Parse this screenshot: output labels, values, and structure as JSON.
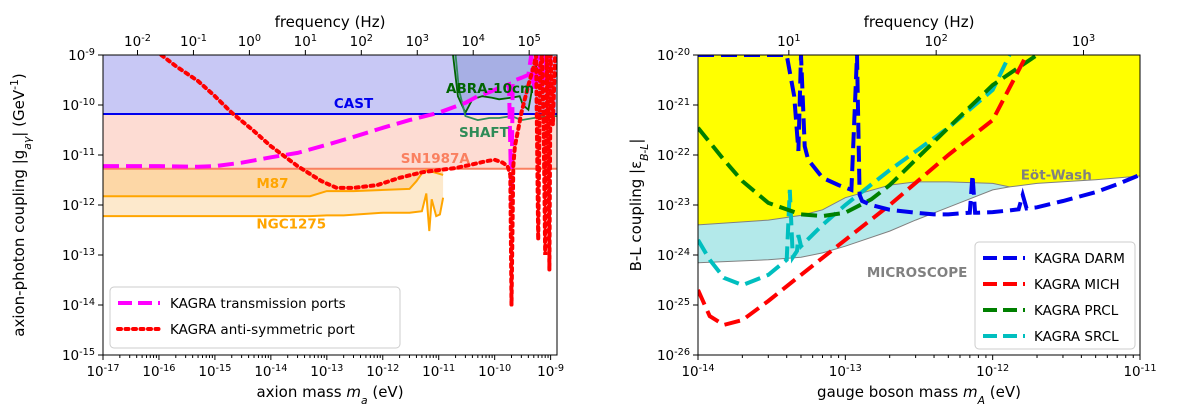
{
  "chart_data": [
    {
      "type": "line",
      "xlabel": "axion mass $m_a$ (eV)",
      "ylabel": "axion-photon coupling $|g_{a\\gamma}|$ (GeV$^{-1}$)",
      "top_xlabel": "frequency (Hz)",
      "xscale": "log",
      "yscale": "log",
      "xlim": [
        1e-17,
        1.3e-09
      ],
      "ylim": [
        1e-15,
        1e-09
      ],
      "x_ticks": [
        "10$^{-17}$",
        "10$^{-16}$",
        "10$^{-15}$",
        "10$^{-14}$",
        "10$^{-13}$",
        "10$^{-12}$",
        "10$^{-11}$",
        "10$^{-10}$",
        "10$^{-9}$"
      ],
      "y_ticks": [
        "10$^{-15}$",
        "10$^{-14}$",
        "10$^{-13}$",
        "10$^{-12}$",
        "10$^{-11}$",
        "10$^{-10}$",
        "10$^{-9}$"
      ],
      "top_x_ticks": [
        "10$^{-2}$",
        "10$^{-1}$",
        "10$^{0}$",
        "10$^{1}$",
        "10$^{2}$",
        "10$^{3}$",
        "10$^{4}$",
        "10$^{5}$"
      ],
      "legend": {
        "placement": "lower-left",
        "entries": [
          {
            "label": "KAGRA transmission ports",
            "color": "#ff00ff",
            "style": "dashed"
          },
          {
            "label": "KAGRA anti-symmetric port",
            "color": "#ff0000",
            "style": "dotted"
          }
        ]
      },
      "annotations": [
        {
          "text": "CAST",
          "color": "#0000ee"
        },
        {
          "text": "ABRA-10cm",
          "color": "#006400"
        },
        {
          "text": "SHAFT",
          "color": "#2e8b57"
        },
        {
          "text": "SN1987A",
          "color": "#fa8060"
        },
        {
          "text": "M87",
          "color": "#ffa500"
        },
        {
          "text": "NGC1275",
          "color": "#ffa500"
        }
      ],
      "constraints": [
        {
          "name": "CAST",
          "color": "#0000ee",
          "fill": "#c8c8f5",
          "y": 6.6e-11
        },
        {
          "name": "SN1987A",
          "color": "#fa8060",
          "fill": "#fddcd3",
          "y": 5.3e-12
        },
        {
          "name": "M87",
          "color": "#ffa500",
          "fill": "#fdd7a6",
          "x": [
            1e-17,
            5e-14,
            1e-13,
            3e-13,
            3e-12,
            4e-12,
            5e-12,
            6e-12,
            1.2e-11
          ],
          "y": [
            1.5e-12,
            1.5e-12,
            1.9e-12,
            1.9e-12,
            2.1e-12,
            3e-12,
            4.3e-12,
            5e-12,
            4e-12
          ]
        },
        {
          "name": "NGC1275",
          "color": "#ffa500",
          "fill": "#fde9cc",
          "x": [
            1e-17,
            5e-14,
            1e-13,
            2e-13,
            1e-12,
            3e-12,
            5e-12,
            6e-12,
            6.8e-12,
            7.5e-12,
            9e-12,
            1.05e-11,
            1.2e-11
          ],
          "y": [
            6e-13,
            6e-13,
            6.2e-13,
            6.2e-13,
            7e-13,
            7e-13,
            7.5e-13,
            1.7e-12,
            3e-13,
            1.3e-12,
            6e-13,
            6.5e-13,
            1.4e-12
          ]
        },
        {
          "name": "ABRA-10cm",
          "color": "#006400",
          "x": [
            1.8e-11,
            2.2e-11,
            3e-11,
            4e-11,
            6e-11,
            9e-11,
            1.2e-10,
            2e-10,
            2.8e-10,
            3.2e-10,
            4e-10,
            6e-10
          ],
          "y": [
            1e-09,
            1.5e-10,
            7e-11,
            1.3e-10,
            1.5e-10,
            1.4e-10,
            1.3e-10,
            1.4e-10,
            1.5e-10,
            1e-10,
            8e-11,
            1e-09
          ]
        },
        {
          "name": "SHAFT",
          "color": "#2e8b57",
          "x": [
            2e-11,
            2.3e-11,
            3e-11,
            5e-11,
            8e-11,
            1.2e-10,
            2e-10,
            3e-10,
            5e-10,
            1e-09,
            1.3e-09
          ],
          "y": [
            1e-09,
            2e-10,
            6e-11,
            5e-11,
            5.5e-11,
            5.5e-11,
            6e-11,
            5e-11,
            5.5e-11,
            6e-11,
            6e-11
          ]
        }
      ],
      "series": [
        {
          "name": "KAGRA transmission ports",
          "color": "#ff00ff",
          "style": "dashed",
          "x": [
            1e-17,
            1e-16,
            5e-16,
            1e-15,
            3e-15,
            1e-14,
            3e-14,
            1e-13,
            3e-13,
            1e-12,
            3e-12,
            1e-11,
            3e-11,
            5e-11,
            8e-11,
            1.2e-10,
            1.8e-10,
            2e-10,
            2.1e-10,
            3e-10,
            4e-10,
            4.5e-10,
            5e-10,
            5.5e-10,
            6e-10,
            6.5e-10,
            7e-10,
            8e-10,
            9e-10,
            1e-09,
            1.1e-09
          ],
          "y": [
            6e-12,
            6e-12,
            5.8e-12,
            6e-12,
            7e-12,
            9e-12,
            1.1e-11,
            1.6e-11,
            2.3e-11,
            3.5e-11,
            5e-11,
            7e-11,
            1.1e-10,
            1.5e-10,
            1.8e-10,
            2.2e-10,
            2.6e-10,
            1e-12,
            3e-10,
            3.5e-10,
            4e-10,
            1e-09,
            2e-10,
            1e-09,
            2.5e-10,
            1e-09,
            2e-10,
            1e-09,
            1.5e-10,
            1e-09,
            1e-09
          ]
        },
        {
          "name": "KAGRA anti-symmetric port",
          "color": "#ff0000",
          "style": "dotted",
          "x": [
            1.1e-16,
            2e-16,
            5e-16,
            1e-15,
            2e-15,
            5e-15,
            1e-14,
            3e-14,
            8e-14,
            1.5e-13,
            3e-13,
            8e-13,
            2e-12,
            5e-12,
            1e-11,
            2e-11,
            4e-11,
            7e-11,
            1e-10,
            1.4e-10,
            1.7e-10,
            1.9e-10,
            2e-10,
            2.15e-10,
            2.3e-10,
            2.6e-10,
            3e-10,
            4e-10,
            5e-10,
            5.5e-10,
            6e-10,
            6.5e-10,
            7e-10,
            7.5e-10,
            8e-10,
            8.5e-10,
            9e-10,
            9.5e-10,
            1e-09,
            1.1e-09,
            1.2e-09
          ],
          "y": [
            1e-09,
            6e-10,
            3e-10,
            1.5e-10,
            7e-11,
            3e-11,
            1.5e-11,
            6e-12,
            3e-12,
            2.2e-12,
            2.2e-12,
            2.5e-12,
            3.5e-12,
            4.5e-12,
            5e-12,
            5.5e-12,
            6.5e-12,
            7.5e-12,
            8e-12,
            7e-12,
            6e-12,
            4e-12,
            1e-14,
            6e-12,
            1.5e-11,
            3e-11,
            7e-11,
            2.5e-10,
            6e-10,
            1e-09,
            2e-13,
            6e-10,
            1e-09,
            4e-11,
            1e-13,
            1e-09,
            6e-11,
            5e-14,
            1e-09,
            4e-11,
            1e-09
          ]
        }
      ]
    },
    {
      "type": "line",
      "xlabel": "gauge boson mass $m_A$ (eV)",
      "ylabel": "B-L coupling $|\\epsilon_{B-L}|$",
      "top_xlabel": "frequency (Hz)",
      "xscale": "log",
      "yscale": "log",
      "xlim": [
        1e-14,
        1e-11
      ],
      "ylim": [
        1e-26,
        1e-20
      ],
      "x_ticks": [
        "10$^{-14}$",
        "10$^{-13}$",
        "10$^{-12}$",
        "10$^{-11}$"
      ],
      "y_ticks": [
        "10$^{-26}$",
        "10$^{-25}$",
        "10$^{-24}$",
        "10$^{-23}$",
        "10$^{-22}$",
        "10$^{-21}$",
        "10$^{-20}$"
      ],
      "top_x_ticks": [
        "10$^{1}$",
        "10$^{2}$",
        "10$^{3}$"
      ],
      "legend": {
        "placement": "lower-right",
        "entries": [
          {
            "label": "KAGRA DARM",
            "color": "#0000ee",
            "style": "dashed"
          },
          {
            "label": "KAGRA MICH",
            "color": "#ff0000",
            "style": "dashed"
          },
          {
            "label": "KAGRA PRCL",
            "color": "#008000",
            "style": "dashed"
          },
          {
            "label": "KAGRA SRCL",
            "color": "#00bfbf",
            "style": "dashed"
          }
        ]
      },
      "annotations": [
        {
          "text": "Eöt-Wash",
          "color": "#808080"
        },
        {
          "text": "MICROSCOPE",
          "color": "#808080"
        }
      ],
      "constraints": [
        {
          "name": "Eöt-Wash",
          "color": "#808080",
          "fill": "#ffff00",
          "x": [
            1e-14,
            3e-14,
            5e-14,
            7e-14,
            1e-13,
            2e-13,
            3e-13,
            5e-13,
            1e-12,
            1.3e-12,
            2e-12,
            5e-12,
            1e-11
          ],
          "y": [
            4e-24,
            5e-24,
            6.2e-24,
            8e-24,
            1.4e-23,
            2.5e-23,
            2.9e-23,
            2.9e-23,
            2.7e-23,
            2.3e-23,
            2.7e-23,
            3.2e-23,
            3.8e-23
          ]
        },
        {
          "name": "MICROSCOPE",
          "color": "#808080",
          "fill": "#b3e9ea",
          "x": [
            1e-14,
            3e-14,
            5e-14,
            7e-14,
            1e-13,
            2e-13,
            3e-13,
            5e-13,
            1e-12,
            1.3e-12
          ],
          "y": [
            7e-25,
            8e-25,
            9e-25,
            1.1e-24,
            1.5e-24,
            3e-24,
            5e-24,
            9e-24,
            2e-23,
            2.3e-23
          ]
        }
      ],
      "series": [
        {
          "name": "KAGRA DARM",
          "color": "#0000ee",
          "style": "dashed",
          "x": [
            1e-14,
            1.5e-14,
            2e-14,
            3e-14,
            4e-14,
            4.5e-14,
            4.8e-14,
            5e-14,
            5.3e-14,
            5.6e-14,
            7e-14,
            9e-14,
            1.1e-13,
            1.2e-13,
            1.25e-13,
            1.3e-13,
            1.5e-13,
            2e-13,
            3e-13,
            4e-13,
            5e-13,
            6e-13,
            7e-13,
            7.3e-13,
            7.6e-13,
            8e-13,
            1e-12,
            1.3e-12,
            1.5e-12,
            1.6e-12,
            1.7e-12,
            2e-12,
            3e-12,
            5e-12,
            7e-12,
            1e-11
          ],
          "y": [
            1e-20,
            1e-20,
            1e-20,
            1e-20,
            1e-20,
            1.5e-21,
            1.2e-22,
            1e-20,
            1.5e-22,
            8e-23,
            3.5e-23,
            2.5e-23,
            2e-23,
            1e-20,
            1.6e-23,
            1.2e-23,
            1e-23,
            8e-24,
            7e-24,
            6.5e-24,
            6.5e-24,
            6.8e-24,
            7e-24,
            4e-23,
            7e-24,
            7e-24,
            7.2e-24,
            7.8e-24,
            8.2e-24,
            1.6e-23,
            8.5e-24,
            9e-24,
            1.2e-23,
            1.8e-23,
            2.6e-23,
            4e-23
          ]
        },
        {
          "name": "KAGRA MICH",
          "color": "#ff0000",
          "style": "dashed",
          "x": [
            1e-14,
            1.2e-14,
            1.5e-14,
            2e-14,
            3e-14,
            5e-14,
            1e-13,
            2e-13,
            5e-13,
            1e-12,
            1.7e-12
          ],
          "y": [
            2e-25,
            6e-26,
            4e-26,
            5e-26,
            1.2e-25,
            4e-25,
            2e-24,
            1e-23,
            1e-22,
            5e-22,
            1e-20
          ]
        },
        {
          "name": "KAGRA PRCL",
          "color": "#008000",
          "style": "dashed",
          "x": [
            1e-14,
            1.5e-14,
            2e-14,
            3e-14,
            5e-14,
            7e-14,
            1e-13,
            1.5e-13,
            2e-13,
            3e-13,
            5e-13,
            1e-12,
            2e-12
          ],
          "y": [
            3.5e-22,
            8e-23,
            3e-23,
            1.1e-23,
            6.5e-24,
            6e-24,
            7e-24,
            1.3e-23,
            2.5e-23,
            8e-23,
            3.5e-22,
            2.5e-21,
            1e-20
          ]
        },
        {
          "name": "KAGRA SRCL",
          "color": "#00bfbf",
          "style": "dashed",
          "x": [
            1e-14,
            1.2e-14,
            1.5e-14,
            2e-14,
            3e-14,
            4e-14,
            4.2e-14,
            4.4e-14,
            4.7e-14,
            4.8e-14,
            5e-14,
            7e-14,
            1e-13,
            2e-13,
            5e-13,
            1e-12,
            1.3e-12
          ],
          "y": [
            2e-24,
            8e-25,
            3.5e-25,
            2.5e-25,
            4e-25,
            8e-25,
            2e-23,
            9e-25,
            1.2e-24,
            2.5e-24,
            1.5e-24,
            4e-24,
            1e-23,
            5e-23,
            3.5e-22,
            2e-21,
            1e-20
          ]
        }
      ]
    }
  ]
}
